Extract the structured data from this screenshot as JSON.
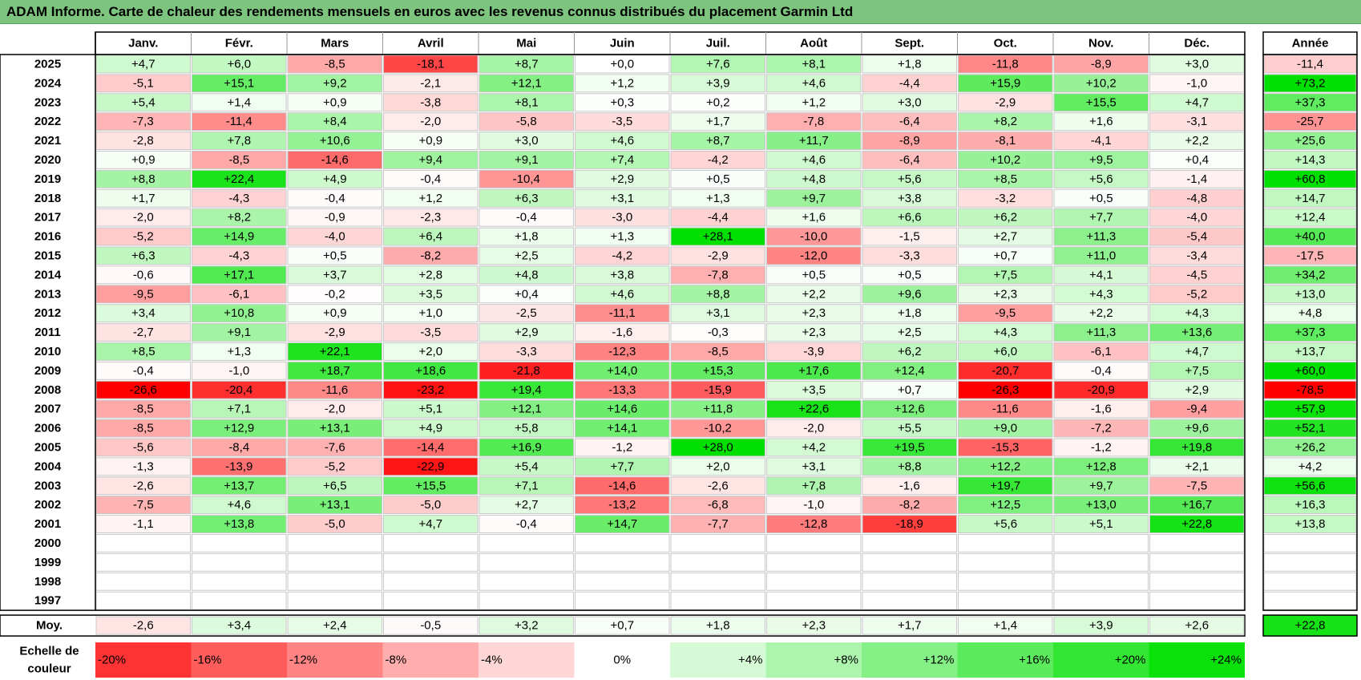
{
  "title": "ADAM Informe. Carte de chaleur des rendements mensuels en euros avec les revenus connus distribués du placement Garmin Ltd",
  "chart_data": {
    "type": "heatmap",
    "months": [
      "Janv.",
      "Févr.",
      "Mars",
      "Avril",
      "Mai",
      "Juin",
      "Juil.",
      "Août",
      "Sept.",
      "Oct.",
      "Nov.",
      "Déc."
    ],
    "year_header": "Année",
    "rows": [
      {
        "year": "2025",
        "values": [
          "+4,7",
          "+6,0",
          "-8,5",
          "-18,1",
          "+8,7",
          "+0,0",
          "+7,6",
          "+8,1",
          "+1,8",
          "-11,8",
          "-8,9",
          "+3,0"
        ],
        "annual": "-11,4"
      },
      {
        "year": "2024",
        "values": [
          "-5,1",
          "+15,1",
          "+9,2",
          "-2,1",
          "+12,1",
          "+1,2",
          "+3,9",
          "+4,6",
          "-4,4",
          "+15,9",
          "+10,2",
          "-1,0"
        ],
        "annual": "+73,2"
      },
      {
        "year": "2023",
        "values": [
          "+5,4",
          "+1,4",
          "+0,9",
          "-3,8",
          "+8,1",
          "+0,3",
          "+0,2",
          "+1,2",
          "+3,0",
          "-2,9",
          "+15,5",
          "+4,7"
        ],
        "annual": "+37,3"
      },
      {
        "year": "2022",
        "values": [
          "-7,3",
          "-11,4",
          "+8,4",
          "-2,0",
          "-5,8",
          "-3,5",
          "+1,7",
          "-7,8",
          "-6,4",
          "+8,2",
          "+1,6",
          "-3,1"
        ],
        "annual": "-25,7"
      },
      {
        "year": "2021",
        "values": [
          "-2,8",
          "+7,8",
          "+10,6",
          "+0,9",
          "+3,0",
          "+4,6",
          "+8,7",
          "+11,7",
          "-8,9",
          "-8,1",
          "-4,1",
          "+2,2"
        ],
        "annual": "+25,6"
      },
      {
        "year": "2020",
        "values": [
          "+0,9",
          "-8,5",
          "-14,6",
          "+9,4",
          "+9,1",
          "+7,4",
          "-4,2",
          "+4,6",
          "-6,4",
          "+10,2",
          "+9,5",
          "+0,4"
        ],
        "annual": "+14,3"
      },
      {
        "year": "2019",
        "values": [
          "+8,8",
          "+22,4",
          "+4,9",
          "-0,4",
          "-10,4",
          "+2,9",
          "+0,5",
          "+4,8",
          "+5,6",
          "+8,5",
          "+5,6",
          "-1,4"
        ],
        "annual": "+60,8"
      },
      {
        "year": "2018",
        "values": [
          "+1,7",
          "-4,3",
          "-0,4",
          "+1,2",
          "+6,3",
          "+3,1",
          "+1,3",
          "+9,7",
          "+3,8",
          "-3,2",
          "+0,5",
          "-4,8"
        ],
        "annual": "+14,7"
      },
      {
        "year": "2017",
        "values": [
          "-2,0",
          "+8,2",
          "-0,9",
          "-2,3",
          "-0,4",
          "-3,0",
          "-4,4",
          "+1,6",
          "+6,6",
          "+6,2",
          "+7,7",
          "-4,0"
        ],
        "annual": "+12,4"
      },
      {
        "year": "2016",
        "values": [
          "-5,2",
          "+14,9",
          "-4,0",
          "+6,4",
          "+1,8",
          "+1,3",
          "+28,1",
          "-10,0",
          "-1,5",
          "+2,7",
          "+11,3",
          "-5,4"
        ],
        "annual": "+40,0"
      },
      {
        "year": "2015",
        "values": [
          "+6,3",
          "-4,3",
          "+0,5",
          "-8,2",
          "+2,5",
          "-4,2",
          "-2,9",
          "-12,0",
          "-3,3",
          "+0,7",
          "+11,0",
          "-3,4"
        ],
        "annual": "-17,5"
      },
      {
        "year": "2014",
        "values": [
          "-0,6",
          "+17,1",
          "+3,7",
          "+2,8",
          "+4,8",
          "+3,8",
          "-7,8",
          "+0,5",
          "+0,5",
          "+7,5",
          "+4,1",
          "-4,5"
        ],
        "annual": "+34,2"
      },
      {
        "year": "2013",
        "values": [
          "-9,5",
          "-6,1",
          "-0,2",
          "+3,5",
          "+0,4",
          "+4,6",
          "+8,8",
          "+2,2",
          "+9,6",
          "+2,3",
          "+4,3",
          "-5,2"
        ],
        "annual": "+13,0"
      },
      {
        "year": "2012",
        "values": [
          "+3,4",
          "+10,8",
          "+0,9",
          "+1,0",
          "-2,5",
          "-11,1",
          "+3,1",
          "+2,3",
          "+1,8",
          "-9,5",
          "+2,2",
          "+4,3"
        ],
        "annual": "+4,8"
      },
      {
        "year": "2011",
        "values": [
          "-2,7",
          "+9,1",
          "-2,9",
          "-3,5",
          "+2,9",
          "-1,6",
          "-0,3",
          "+2,3",
          "+2,5",
          "+4,3",
          "+11,3",
          "+13,6"
        ],
        "annual": "+37,3"
      },
      {
        "year": "2010",
        "values": [
          "+8,5",
          "+1,3",
          "+22,1",
          "+2,0",
          "-3,3",
          "-12,3",
          "-8,5",
          "-3,9",
          "+6,2",
          "+6,0",
          "-6,1",
          "+4,7"
        ],
        "annual": "+13,7"
      },
      {
        "year": "2009",
        "values": [
          "-0,4",
          "-1,0",
          "+18,7",
          "+18,6",
          "-21,8",
          "+14,0",
          "+15,3",
          "+17,6",
          "+12,4",
          "-20,7",
          "-0,4",
          "+7,5"
        ],
        "annual": "+60,0"
      },
      {
        "year": "2008",
        "values": [
          "-26,6",
          "-20,4",
          "-11,6",
          "-23,2",
          "+19,4",
          "-13,3",
          "-15,9",
          "+3,5",
          "+0,7",
          "-26,3",
          "-20,9",
          "+2,9"
        ],
        "annual": "-78,5"
      },
      {
        "year": "2007",
        "values": [
          "-8,5",
          "+7,1",
          "-2,0",
          "+5,1",
          "+12,1",
          "+14,6",
          "+11,8",
          "+22,6",
          "+12,6",
          "-11,6",
          "-1,6",
          "-9,4"
        ],
        "annual": "+57,9"
      },
      {
        "year": "2006",
        "values": [
          "-8,5",
          "+12,9",
          "+13,1",
          "+4,9",
          "+5,8",
          "+14,1",
          "-10,2",
          "-2,0",
          "+5,5",
          "+9,0",
          "-7,2",
          "+9,6"
        ],
        "annual": "+52,1"
      },
      {
        "year": "2005",
        "values": [
          "-5,6",
          "-8,4",
          "-7,6",
          "-14,4",
          "+16,9",
          "-1,2",
          "+28,0",
          "+4,2",
          "+19,5",
          "-15,3",
          "-1,2",
          "+19,8"
        ],
        "annual": "+26,2"
      },
      {
        "year": "2004",
        "values": [
          "-1,3",
          "-13,9",
          "-5,2",
          "-22,9",
          "+5,4",
          "+7,7",
          "+2,0",
          "+3,1",
          "+8,8",
          "+12,2",
          "+12,8",
          "+2,1"
        ],
        "annual": "+4,2"
      },
      {
        "year": "2003",
        "values": [
          "-2,6",
          "+13,7",
          "+6,5",
          "+15,5",
          "+7,1",
          "-14,6",
          "-2,6",
          "+7,8",
          "-1,6",
          "+19,7",
          "+9,7",
          "-7,5"
        ],
        "annual": "+56,6"
      },
      {
        "year": "2002",
        "values": [
          "-7,5",
          "+4,6",
          "+13,1",
          "-5,0",
          "+2,7",
          "-13,2",
          "-6,8",
          "-1,0",
          "-8,2",
          "+12,5",
          "+13,0",
          "+16,7"
        ],
        "annual": "+16,3"
      },
      {
        "year": "2001",
        "values": [
          "-1,1",
          "+13,8",
          "-5,0",
          "+4,7",
          "-0,4",
          "+14,7",
          "-7,7",
          "-12,8",
          "-18,9",
          "+5,6",
          "+5,1",
          "+22,8"
        ],
        "annual": "+13,8"
      },
      {
        "year": "2000",
        "values": [
          "",
          "",
          "",
          "",
          "",
          "",
          "",
          "",
          "",
          "",
          "",
          ""
        ],
        "annual": ""
      },
      {
        "year": "1999",
        "values": [
          "",
          "",
          "",
          "",
          "",
          "",
          "",
          "",
          "",
          "",
          "",
          ""
        ],
        "annual": ""
      },
      {
        "year": "1998",
        "values": [
          "",
          "",
          "",
          "",
          "",
          "",
          "",
          "",
          "",
          "",
          "",
          ""
        ],
        "annual": ""
      },
      {
        "year": "1997",
        "values": [
          "",
          "",
          "",
          "",
          "",
          "",
          "",
          "",
          "",
          "",
          "",
          ""
        ],
        "annual": ""
      }
    ],
    "average": {
      "label": "Moy.",
      "values": [
        "-2,6",
        "+3,4",
        "+2,4",
        "-0,5",
        "+3,2",
        "+0,7",
        "+1,8",
        "+2,3",
        "+1,7",
        "+1,4",
        "+3,9",
        "+2,6"
      ],
      "annual": "+22,8"
    },
    "color_scale": {
      "label_line1": "Echelle de",
      "label_line2": "couleur",
      "stops": [
        "-20%",
        "-16%",
        "-12%",
        "-8%",
        "-4%",
        "0%",
        "+4%",
        "+8%",
        "+12%",
        "+16%",
        "+20%",
        "+24%"
      ]
    },
    "colors": {
      "negative_max": "#ff0000",
      "neutral": "#ffffff",
      "positive_max": "#00e000"
    }
  }
}
